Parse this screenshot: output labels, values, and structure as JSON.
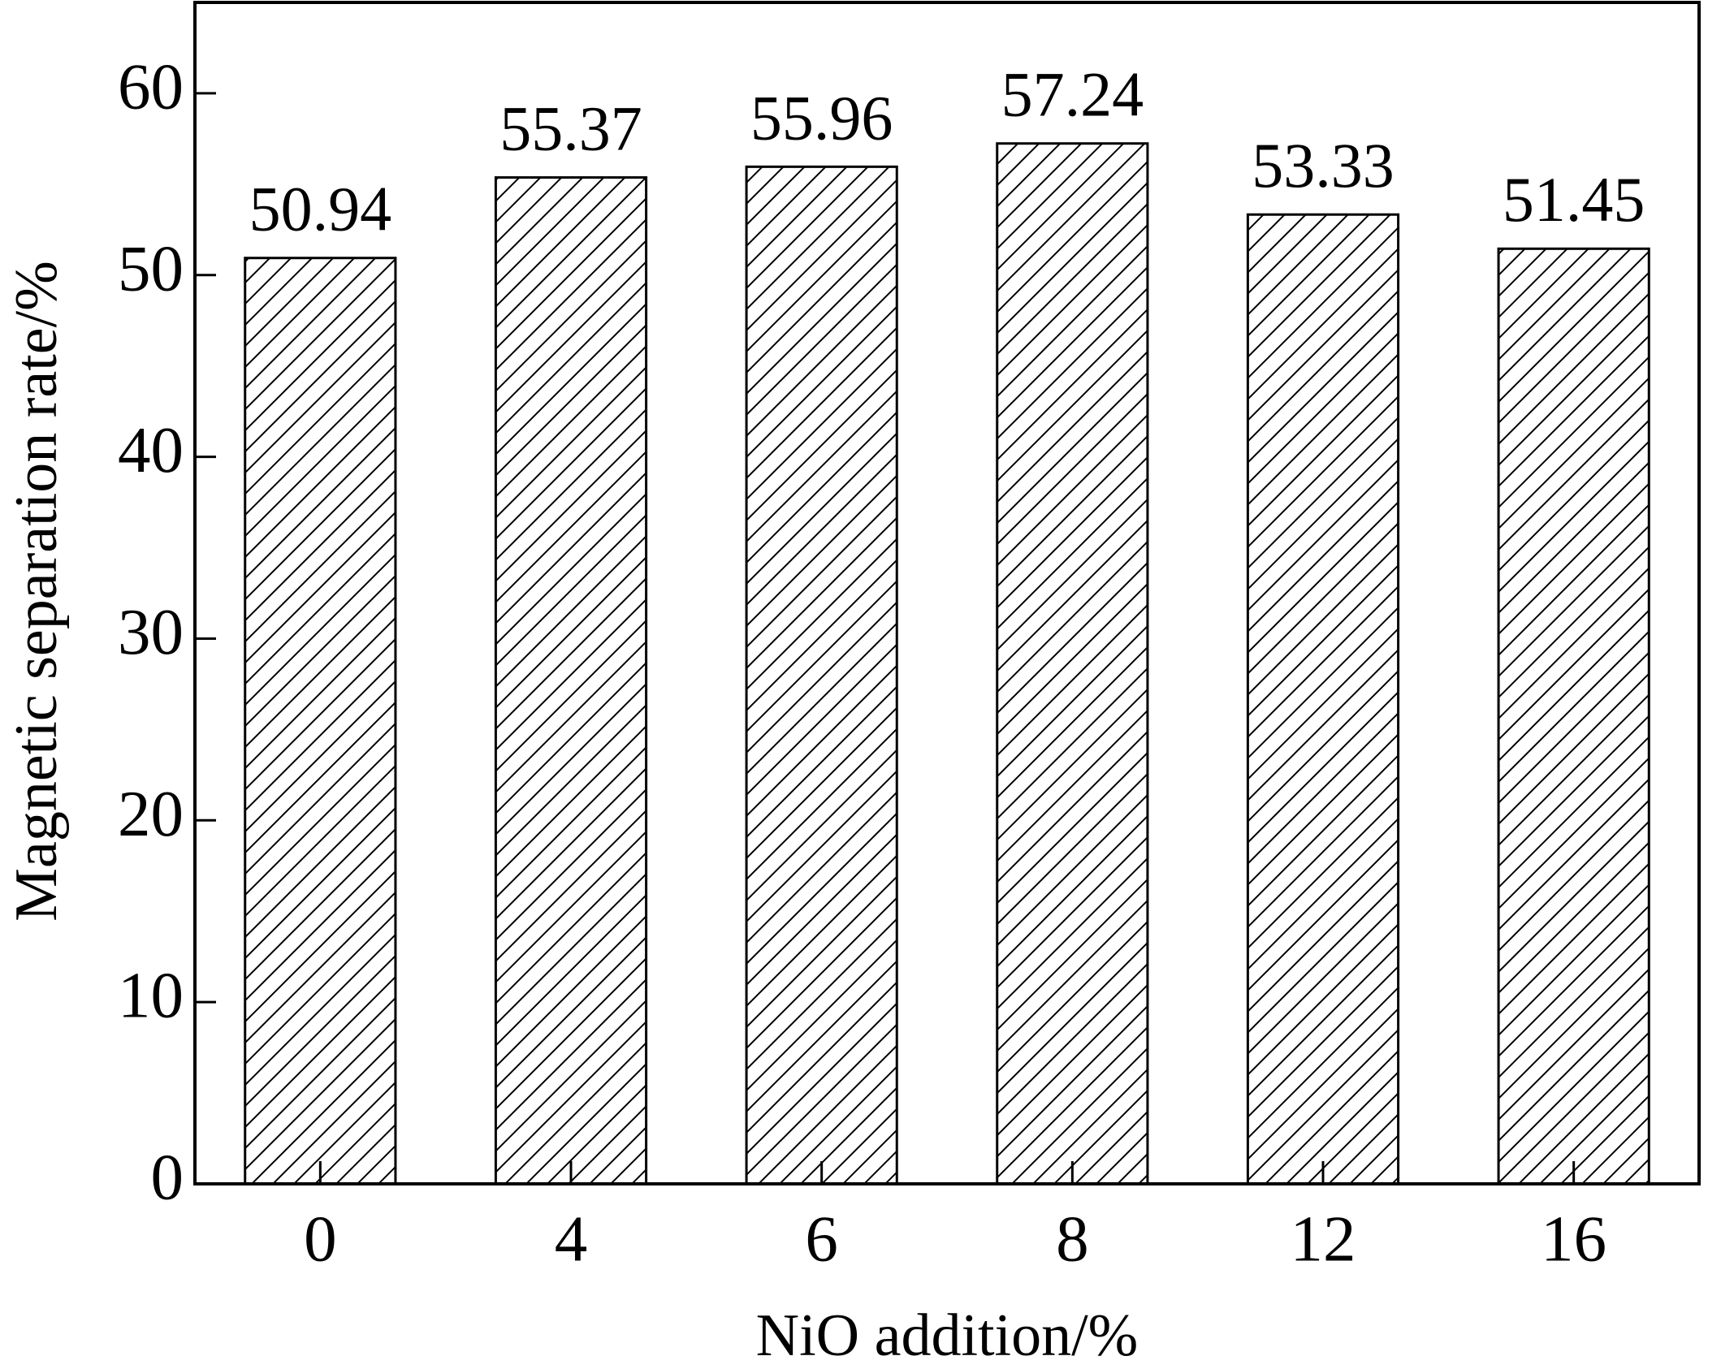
{
  "chart_data": {
    "type": "bar",
    "x_label": "NiO addition/%",
    "y_label": "Magnetic separation rate/%",
    "categories": [
      "0",
      "4",
      "6",
      "8",
      "12",
      "16"
    ],
    "values": [
      50.94,
      55.37,
      55.96,
      57.24,
      53.33,
      51.45
    ],
    "color": "#000000",
    "hatch": "/",
    "ylim": [
      0,
      65
    ],
    "yticks": [
      0,
      10,
      20,
      30,
      40,
      50,
      60
    ],
    "grid": false
  }
}
